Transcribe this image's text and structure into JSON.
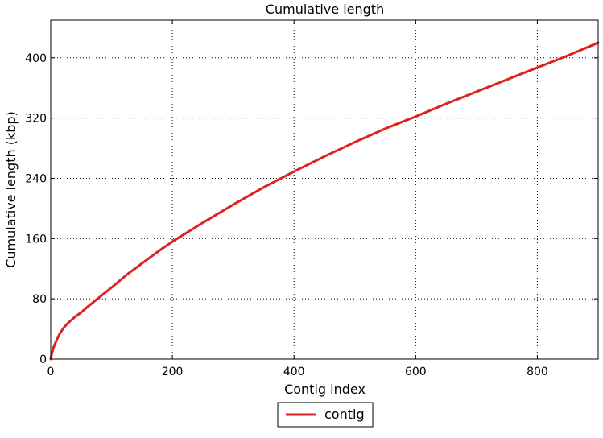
{
  "chart_data": {
    "type": "line",
    "title": "Cumulative length",
    "xlabel": "Contig index",
    "ylabel": "Cumulative length (kbp)",
    "xlim": [
      0,
      900
    ],
    "ylim": [
      0,
      450
    ],
    "xticks": [
      0,
      200,
      400,
      600,
      800
    ],
    "yticks": [
      0,
      80,
      160,
      240,
      320,
      400
    ],
    "grid": true,
    "legend_position": "bottom-center",
    "series": [
      {
        "name": "contig",
        "color": "#dd2222",
        "x": [
          0,
          2,
          5,
          10,
          15,
          20,
          25,
          30,
          40,
          50,
          60,
          80,
          100,
          125,
          150,
          175,
          200,
          250,
          300,
          350,
          400,
          450,
          500,
          550,
          600,
          650,
          700,
          750,
          800,
          850,
          900
        ],
        "y": [
          0,
          8,
          16,
          26,
          34,
          40,
          45,
          49,
          56,
          62,
          69,
          82,
          95,
          112,
          127,
          142,
          156,
          181,
          205,
          228,
          249,
          269,
          288,
          306,
          322,
          339,
          355,
          371,
          387,
          403,
          420
        ]
      }
    ]
  }
}
